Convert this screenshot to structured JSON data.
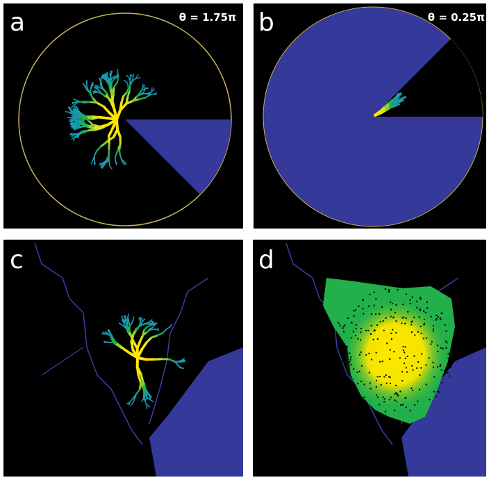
{
  "panels": [
    {
      "label": "a",
      "annotation": "θ = 1.75π"
    },
    {
      "label": "b",
      "annotation": "θ = 0.25π"
    },
    {
      "label": "c"
    },
    {
      "label": "d"
    }
  ]
}
